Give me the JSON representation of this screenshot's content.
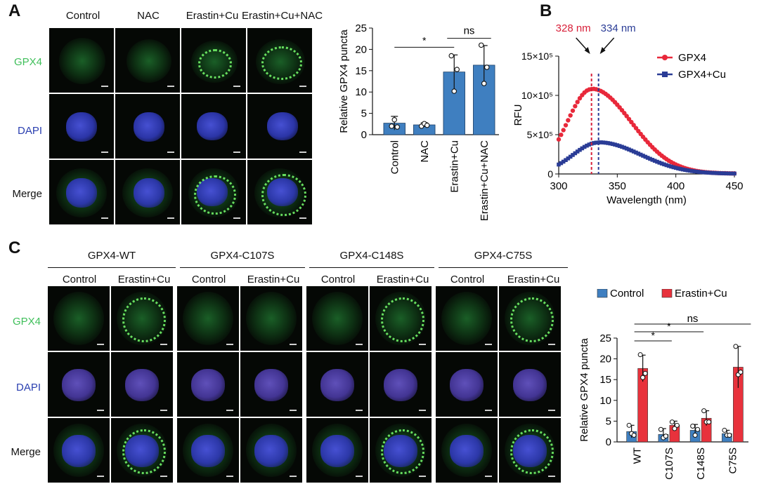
{
  "panel_labels": {
    "a": "A",
    "b": "B",
    "c": "C"
  },
  "panel_a": {
    "columns": [
      "Control",
      "NAC",
      "Erastin+Cu",
      "Erastin+Cu+NAC"
    ],
    "rows": [
      "GPX4",
      "DAPI",
      "Merge"
    ]
  },
  "panel_c": {
    "groups": [
      "GPX4-WT",
      "GPX4-C107S",
      "GPX4-C148S",
      "GPX4-C75S"
    ],
    "subcolumns": [
      "Control",
      "Erastin+Cu",
      "Control",
      "Erastin+Cu",
      "Control",
      "Erastin+Cu",
      "Control",
      "Erastin+Cu"
    ],
    "rows": [
      "GPX4",
      "DAPI",
      "Merge"
    ]
  },
  "colors": {
    "gpx4_label": "#3fbf5a",
    "dapi_label": "#2a3fb0",
    "bar_blue": "#3f7fc0",
    "bar_red": "#e8323c",
    "line_red": "#e8283a",
    "line_blue": "#2a3c96",
    "wl_328": "#d8203a",
    "wl_334": "#2a3c96"
  },
  "chart_data": [
    {
      "id": "A-bar",
      "type": "bar",
      "categories": [
        "Control",
        "NAC",
        "Erastin+Cu",
        "Erastin+Cu+NAC"
      ],
      "values": [
        2.7,
        2.3,
        14.7,
        16.3
      ],
      "errors": [
        1.6,
        0.5,
        4.0,
        4.6
      ],
      "points": [
        [
          2.0,
          3.5,
          1.8
        ],
        [
          2.0,
          2.6,
          2.2
        ],
        [
          18.5,
          10.2,
          15.3
        ],
        [
          21.0,
          12.0,
          15.8
        ]
      ],
      "ylabel": "Relative GPX4 puncta",
      "ylim": [
        0,
        25
      ],
      "yticks": [
        0,
        5,
        10,
        15,
        20,
        25
      ],
      "significance": [
        {
          "from": 0,
          "to": 2,
          "label": "*"
        },
        {
          "from": 2,
          "to": 3,
          "label": "ns"
        }
      ]
    },
    {
      "id": "B-spectrum",
      "type": "line",
      "xlabel": "Wavelength (nm)",
      "ylabel": "RFU",
      "xlim": [
        300,
        450
      ],
      "xticks": [
        300,
        350,
        400,
        450
      ],
      "ylim": [
        0,
        1500000
      ],
      "ytick_values": [
        0,
        500000,
        1000000,
        1500000
      ],
      "ytick_labels": [
        "0",
        "5×10⁵",
        "10×10⁵",
        "15×10⁵"
      ],
      "legend": [
        "GPX4",
        "GPX4+Cu"
      ],
      "legend_position": "top-right",
      "series": [
        {
          "name": "GPX4",
          "peak_x": 328,
          "peak_y": 1080000,
          "start_y": 440000,
          "end_y": 5000
        },
        {
          "name": "GPX4+Cu",
          "peak_x": 334,
          "peak_y": 400000,
          "start_y": 120000,
          "end_y": 3000
        }
      ],
      "annotations": [
        {
          "x": 328,
          "label": "328 nm"
        },
        {
          "x": 334,
          "label": "334 nm"
        }
      ]
    },
    {
      "id": "C-bar",
      "type": "bar",
      "categories": [
        "WT",
        "C107S",
        "C148S",
        "C75S"
      ],
      "legend": [
        "Control",
        "Erastin+Cu"
      ],
      "legend_position": "top",
      "series": [
        {
          "name": "Control",
          "values": [
            2.5,
            1.8,
            2.8,
            2.0
          ],
          "errors": [
            1.5,
            1.4,
            1.4,
            0.8
          ],
          "points": [
            [
              4.0,
              2.0,
              1.6
            ],
            [
              3.0,
              1.0,
              1.4
            ],
            [
              3.8,
              1.6,
              3.0
            ],
            [
              2.8,
              1.6,
              1.6
            ]
          ]
        },
        {
          "name": "Erastin+Cu",
          "values": [
            17.7,
            4.0,
            5.7,
            18.0
          ],
          "errors": [
            3.2,
            1.0,
            1.8,
            5.0
          ],
          "points": [
            [
              21.0,
              15.5,
              16.5
            ],
            [
              4.8,
              3.2,
              4.0
            ],
            [
              7.5,
              4.8,
              4.8
            ],
            [
              23.0,
              16.2,
              16.8
            ]
          ]
        }
      ],
      "ylabel": "Relative GPX4 puncta",
      "ylim": [
        0,
        25
      ],
      "yticks": [
        0,
        5,
        10,
        15,
        20,
        25
      ],
      "significance": [
        {
          "from": 0,
          "to": 1,
          "label": "*"
        },
        {
          "from": 0,
          "to": 2,
          "label": "*"
        },
        {
          "from": 0,
          "to": 3,
          "label": "ns"
        }
      ]
    }
  ]
}
